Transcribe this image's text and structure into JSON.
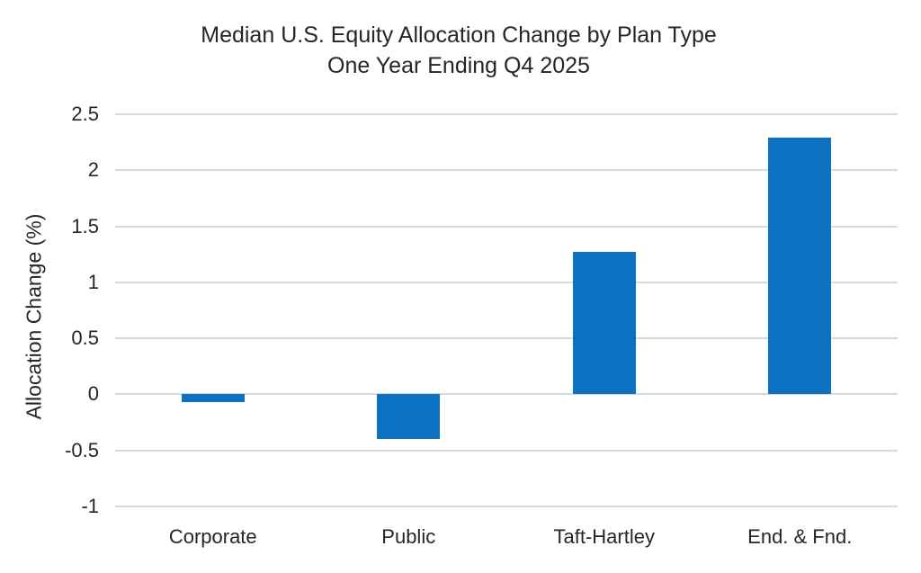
{
  "chart_data": {
    "type": "bar",
    "title": "Median U.S. Equity Allocation Change by Plan Type",
    "subtitle": "One Year Ending Q4 2025",
    "ylabel": "Allocation Change (%)",
    "xlabel": "",
    "categories": [
      "Corporate",
      "Public",
      "Taft-Hartley",
      "End. & Fnd."
    ],
    "values": [
      -0.07,
      -0.4,
      1.27,
      2.29
    ],
    "ylim": [
      -1,
      2.5
    ],
    "yticks": [
      2.5,
      2,
      1.5,
      1,
      0.5,
      0,
      -0.5,
      -1
    ],
    "ytick_labels": [
      "2.5",
      "2",
      "1.5",
      "1",
      "0.5",
      "0",
      "-0.5",
      "-1"
    ],
    "grid": true,
    "legend": false,
    "colors": {
      "bar": "#0d72c1",
      "gridline": "#d9d9d9",
      "text": "#262626",
      "background": "#ffffff"
    }
  }
}
